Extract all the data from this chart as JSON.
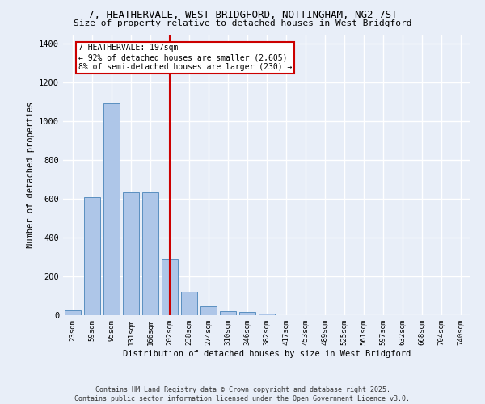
{
  "title_line1": "7, HEATHERVALE, WEST BRIDGFORD, NOTTINGHAM, NG2 7ST",
  "title_line2": "Size of property relative to detached houses in West Bridgford",
  "xlabel": "Distribution of detached houses by size in West Bridgford",
  "ylabel": "Number of detached properties",
  "categories": [
    "23sqm",
    "59sqm",
    "95sqm",
    "131sqm",
    "166sqm",
    "202sqm",
    "238sqm",
    "274sqm",
    "310sqm",
    "346sqm",
    "382sqm",
    "417sqm",
    "453sqm",
    "489sqm",
    "525sqm",
    "561sqm",
    "597sqm",
    "632sqm",
    "668sqm",
    "704sqm",
    "740sqm"
  ],
  "values": [
    25,
    610,
    1095,
    635,
    635,
    290,
    120,
    45,
    20,
    18,
    10,
    0,
    0,
    0,
    0,
    0,
    0,
    0,
    0,
    0,
    0
  ],
  "bar_color": "#aec6e8",
  "bar_edge_color": "#5a8fc0",
  "vline_x": 5.0,
  "vline_color": "#cc0000",
  "annotation_text": "7 HEATHERVALE: 197sqm\n← 92% of detached houses are smaller (2,605)\n8% of semi-detached houses are larger (230) →",
  "annotation_box_color": "#ffffff",
  "annotation_box_edge": "#cc0000",
  "ylim": [
    0,
    1450
  ],
  "bg_color": "#e8eef8",
  "grid_color": "#ffffff",
  "footer_line1": "Contains HM Land Registry data © Crown copyright and database right 2025.",
  "footer_line2": "Contains public sector information licensed under the Open Government Licence v3.0."
}
